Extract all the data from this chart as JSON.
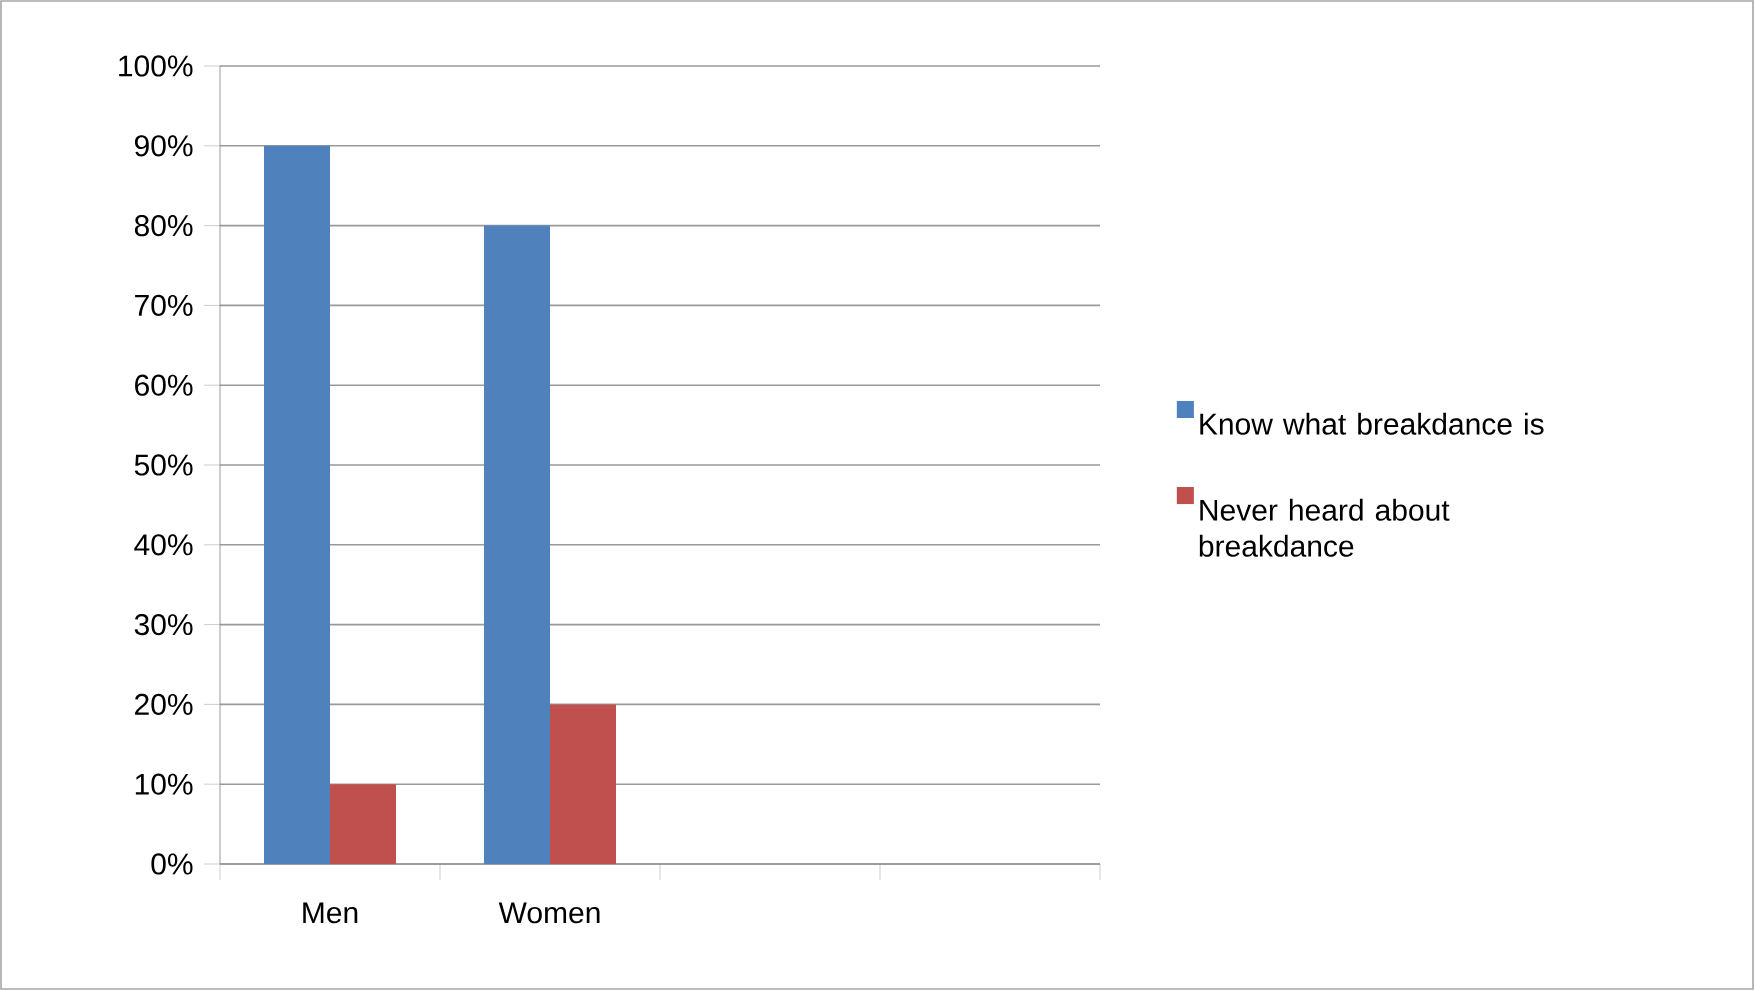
{
  "chart_data": {
    "type": "bar",
    "categories": [
      "Men",
      "Women",
      null,
      null
    ],
    "series": [
      {
        "name": "Know what breakdance is",
        "color": "#4f81bd",
        "values": [
          90,
          80,
          null,
          null
        ]
      },
      {
        "name": "Never heard about breakdance",
        "color": "#c0504d",
        "values": [
          10,
          20,
          null,
          null
        ]
      }
    ],
    "ylim": [
      0,
      100
    ],
    "yticks": [
      {
        "value": 0,
        "label": "0%"
      },
      {
        "value": 10,
        "label": "10%"
      },
      {
        "value": 20,
        "label": "20%"
      },
      {
        "value": 30,
        "label": "30%"
      },
      {
        "value": 40,
        "label": "40%"
      },
      {
        "value": 50,
        "label": "50%"
      },
      {
        "value": 60,
        "label": "60%"
      },
      {
        "value": 70,
        "label": "70%"
      },
      {
        "value": 80,
        "label": "80%"
      },
      {
        "value": 90,
        "label": "90%"
      },
      {
        "value": 100,
        "label": "100%"
      }
    ],
    "grid": "y",
    "legend": "right"
  }
}
